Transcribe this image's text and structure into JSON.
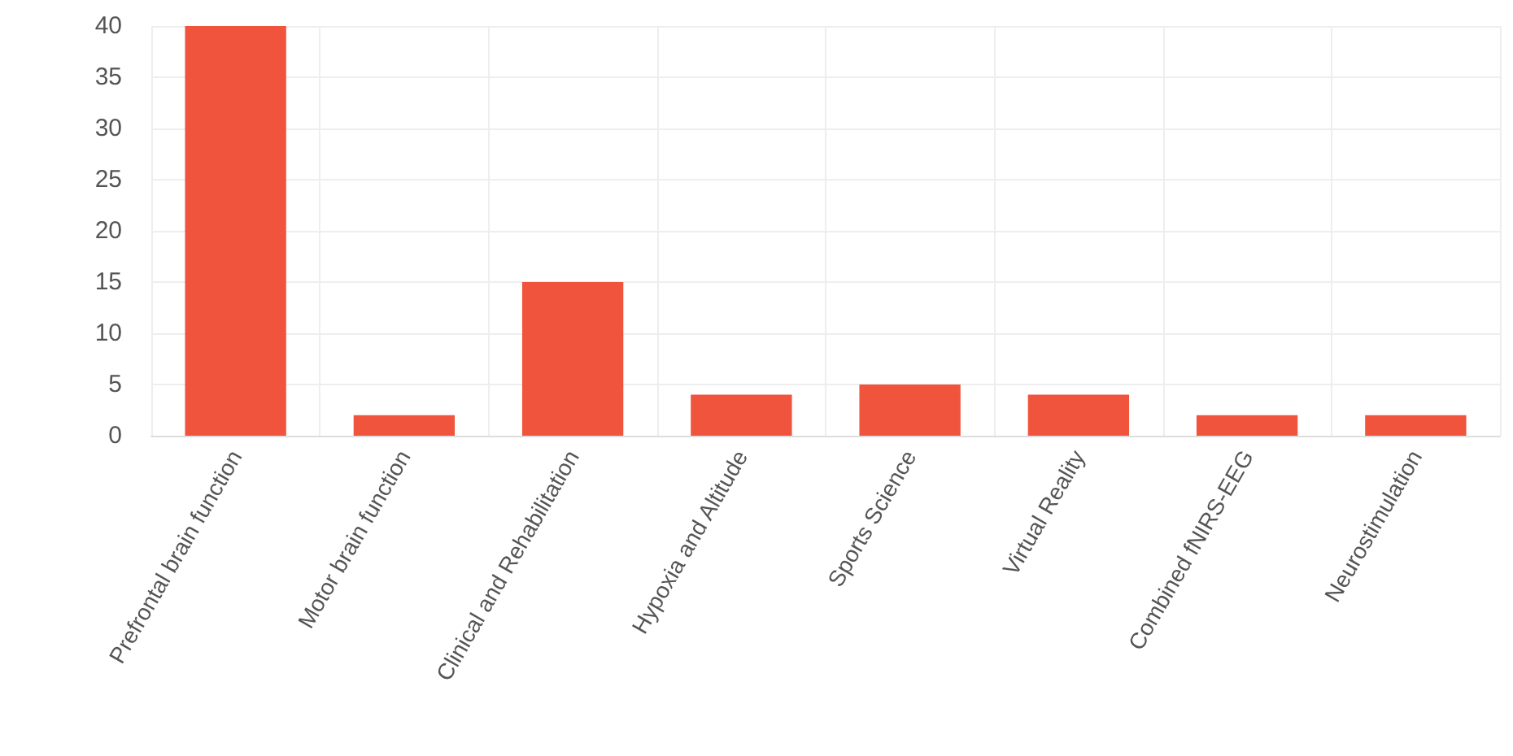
{
  "chart_data": {
    "type": "bar",
    "categories": [
      "Prefrontal brain function",
      "Motor brain function",
      "Clinical and Rehabilitation",
      "Hypoxia and Altitude",
      "Sports Science",
      "Virtual Reality",
      "Combined fNIRS-EEG",
      "Neurostimulation"
    ],
    "values": [
      40,
      2,
      15,
      4,
      5,
      4,
      2,
      2
    ],
    "color": "#f1543d",
    "ylim": [
      0,
      40
    ],
    "yticks": [
      0,
      5,
      10,
      15,
      20,
      25,
      30,
      35,
      40
    ],
    "grid": true
  }
}
